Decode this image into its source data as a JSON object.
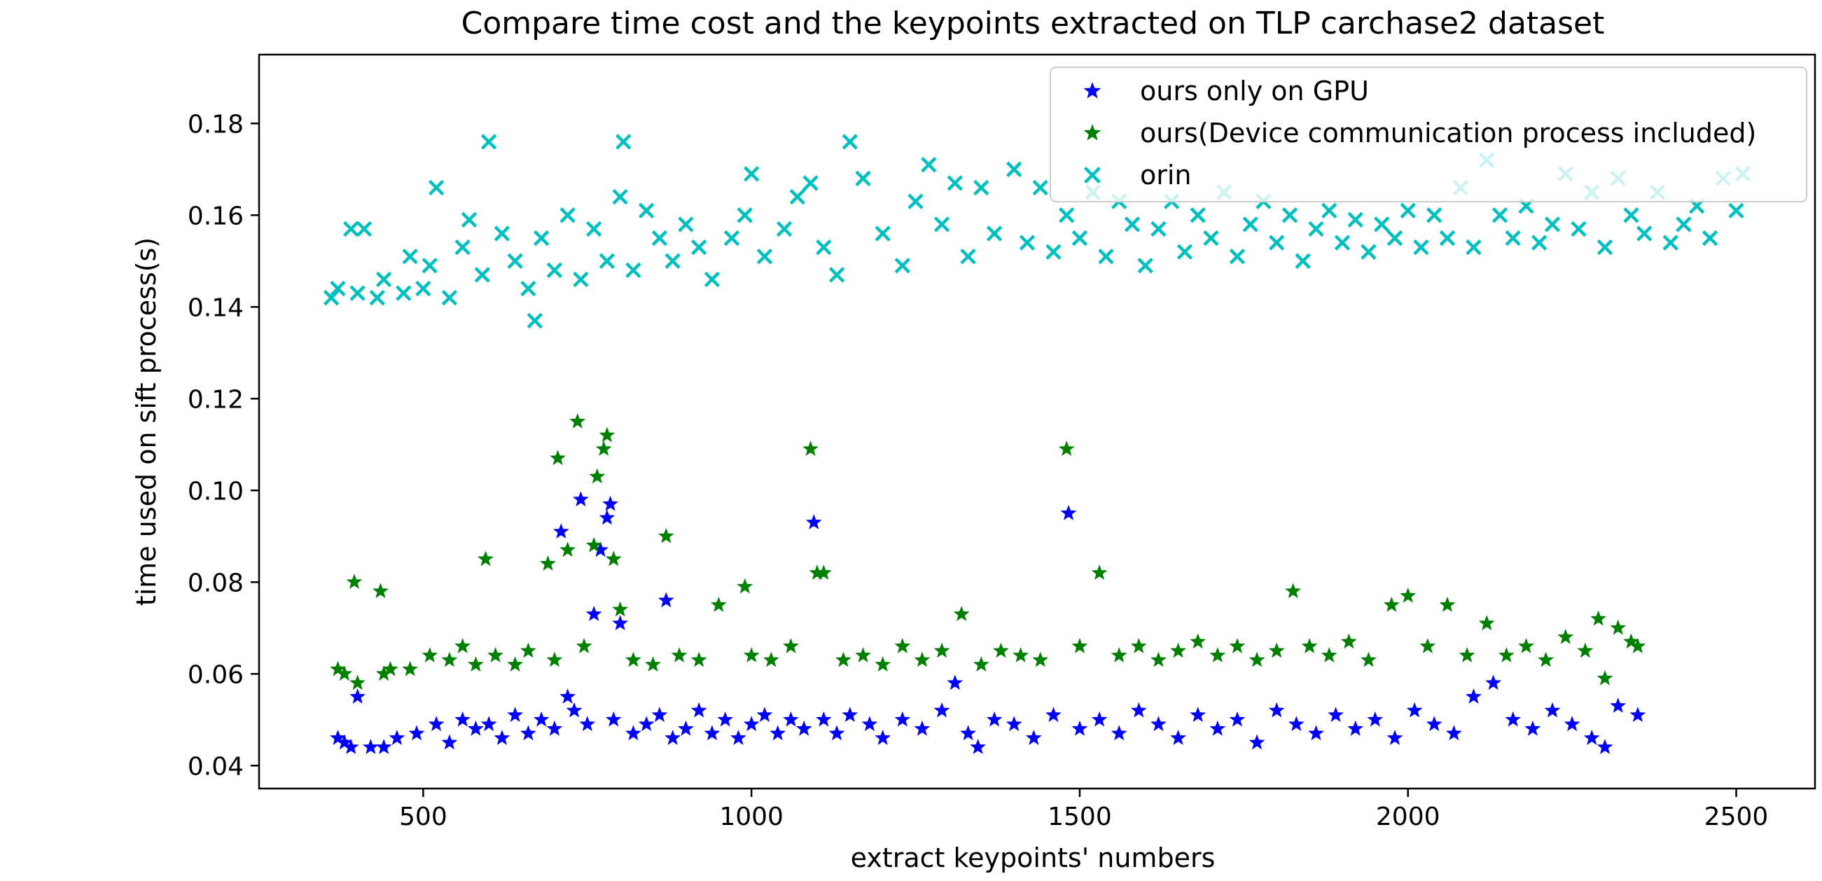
{
  "chart_data": {
    "type": "scatter",
    "title": "Compare time cost and the keypoints extracted on TLP carchase2 dataset",
    "xlabel": "extract keypoints' numbers",
    "ylabel": "time used on sift process(s)",
    "xlim": [
      250,
      2620
    ],
    "ylim": [
      0.035,
      0.195
    ],
    "xticks": [
      500,
      1000,
      1500,
      2000,
      2500
    ],
    "xtick_labels": [
      "500",
      "1000",
      "1500",
      "2000",
      "2500"
    ],
    "yticks": [
      0.04,
      0.06,
      0.08,
      0.1,
      0.12,
      0.14,
      0.16,
      0.18
    ],
    "ytick_labels": [
      "0.04",
      "0.06",
      "0.08",
      "0.10",
      "0.12",
      "0.14",
      "0.16",
      "0.18"
    ],
    "grid": false,
    "legend_position": "top-right",
    "series": [
      {
        "name": "ours only on GPU",
        "marker": "star",
        "color": "#0000ff",
        "points": [
          [
            370,
            0.046
          ],
          [
            380,
            0.045
          ],
          [
            390,
            0.044
          ],
          [
            400,
            0.055
          ],
          [
            420,
            0.044
          ],
          [
            440,
            0.044
          ],
          [
            460,
            0.046
          ],
          [
            490,
            0.047
          ],
          [
            520,
            0.049
          ],
          [
            540,
            0.045
          ],
          [
            560,
            0.05
          ],
          [
            580,
            0.048
          ],
          [
            600,
            0.049
          ],
          [
            620,
            0.046
          ],
          [
            640,
            0.051
          ],
          [
            660,
            0.047
          ],
          [
            680,
            0.05
          ],
          [
            700,
            0.048
          ],
          [
            710,
            0.091
          ],
          [
            720,
            0.055
          ],
          [
            730,
            0.052
          ],
          [
            740,
            0.098
          ],
          [
            750,
            0.049
          ],
          [
            760,
            0.073
          ],
          [
            770,
            0.087
          ],
          [
            780,
            0.094
          ],
          [
            785,
            0.097
          ],
          [
            790,
            0.05
          ],
          [
            800,
            0.071
          ],
          [
            820,
            0.047
          ],
          [
            840,
            0.049
          ],
          [
            860,
            0.051
          ],
          [
            870,
            0.076
          ],
          [
            880,
            0.046
          ],
          [
            900,
            0.048
          ],
          [
            920,
            0.052
          ],
          [
            940,
            0.047
          ],
          [
            960,
            0.05
          ],
          [
            980,
            0.046
          ],
          [
            1000,
            0.049
          ],
          [
            1020,
            0.051
          ],
          [
            1040,
            0.047
          ],
          [
            1060,
            0.05
          ],
          [
            1080,
            0.048
          ],
          [
            1095,
            0.093
          ],
          [
            1110,
            0.05
          ],
          [
            1130,
            0.047
          ],
          [
            1150,
            0.051
          ],
          [
            1180,
            0.049
          ],
          [
            1200,
            0.046
          ],
          [
            1230,
            0.05
          ],
          [
            1260,
            0.048
          ],
          [
            1290,
            0.052
          ],
          [
            1310,
            0.058
          ],
          [
            1330,
            0.047
          ],
          [
            1345,
            0.044
          ],
          [
            1370,
            0.05
          ],
          [
            1400,
            0.049
          ],
          [
            1430,
            0.046
          ],
          [
            1460,
            0.051
          ],
          [
            1483,
            0.095
          ],
          [
            1500,
            0.048
          ],
          [
            1530,
            0.05
          ],
          [
            1560,
            0.047
          ],
          [
            1590,
            0.052
          ],
          [
            1620,
            0.049
          ],
          [
            1650,
            0.046
          ],
          [
            1680,
            0.051
          ],
          [
            1710,
            0.048
          ],
          [
            1740,
            0.05
          ],
          [
            1770,
            0.045
          ],
          [
            1800,
            0.052
          ],
          [
            1830,
            0.049
          ],
          [
            1860,
            0.047
          ],
          [
            1890,
            0.051
          ],
          [
            1920,
            0.048
          ],
          [
            1950,
            0.05
          ],
          [
            1980,
            0.046
          ],
          [
            2010,
            0.052
          ],
          [
            2040,
            0.049
          ],
          [
            2070,
            0.047
          ],
          [
            2100,
            0.055
          ],
          [
            2130,
            0.058
          ],
          [
            2160,
            0.05
          ],
          [
            2190,
            0.048
          ],
          [
            2220,
            0.052
          ],
          [
            2250,
            0.049
          ],
          [
            2280,
            0.046
          ],
          [
            2300,
            0.044
          ],
          [
            2320,
            0.053
          ],
          [
            2350,
            0.051
          ]
        ]
      },
      {
        "name": "ours(Device communication process included)",
        "marker": "star",
        "color": "#008000",
        "points": [
          [
            370,
            0.061
          ],
          [
            380,
            0.06
          ],
          [
            395,
            0.08
          ],
          [
            400,
            0.058
          ],
          [
            435,
            0.078
          ],
          [
            440,
            0.06
          ],
          [
            450,
            0.061
          ],
          [
            480,
            0.061
          ],
          [
            510,
            0.064
          ],
          [
            540,
            0.063
          ],
          [
            560,
            0.066
          ],
          [
            580,
            0.062
          ],
          [
            595,
            0.085
          ],
          [
            610,
            0.064
          ],
          [
            640,
            0.062
          ],
          [
            660,
            0.065
          ],
          [
            690,
            0.084
          ],
          [
            700,
            0.063
          ],
          [
            705,
            0.107
          ],
          [
            720,
            0.087
          ],
          [
            735,
            0.115
          ],
          [
            745,
            0.066
          ],
          [
            760,
            0.088
          ],
          [
            765,
            0.103
          ],
          [
            775,
            0.109
          ],
          [
            780,
            0.112
          ],
          [
            790,
            0.085
          ],
          [
            800,
            0.074
          ],
          [
            820,
            0.063
          ],
          [
            850,
            0.062
          ],
          [
            870,
            0.09
          ],
          [
            890,
            0.064
          ],
          [
            920,
            0.063
          ],
          [
            950,
            0.075
          ],
          [
            990,
            0.079
          ],
          [
            1000,
            0.064
          ],
          [
            1030,
            0.063
          ],
          [
            1060,
            0.066
          ],
          [
            1090,
            0.109
          ],
          [
            1100,
            0.082
          ],
          [
            1110,
            0.082
          ],
          [
            1140,
            0.063
          ],
          [
            1170,
            0.064
          ],
          [
            1200,
            0.062
          ],
          [
            1230,
            0.066
          ],
          [
            1260,
            0.063
          ],
          [
            1290,
            0.065
          ],
          [
            1320,
            0.073
          ],
          [
            1350,
            0.062
          ],
          [
            1380,
            0.065
          ],
          [
            1410,
            0.064
          ],
          [
            1440,
            0.063
          ],
          [
            1480,
            0.109
          ],
          [
            1500,
            0.066
          ],
          [
            1530,
            0.082
          ],
          [
            1560,
            0.064
          ],
          [
            1590,
            0.066
          ],
          [
            1620,
            0.063
          ],
          [
            1650,
            0.065
          ],
          [
            1680,
            0.067
          ],
          [
            1710,
            0.064
          ],
          [
            1740,
            0.066
          ],
          [
            1770,
            0.063
          ],
          [
            1800,
            0.065
          ],
          [
            1825,
            0.078
          ],
          [
            1850,
            0.066
          ],
          [
            1880,
            0.064
          ],
          [
            1910,
            0.067
          ],
          [
            1940,
            0.063
          ],
          [
            1975,
            0.075
          ],
          [
            2000,
            0.077
          ],
          [
            2030,
            0.066
          ],
          [
            2060,
            0.075
          ],
          [
            2090,
            0.064
          ],
          [
            2120,
            0.071
          ],
          [
            2150,
            0.064
          ],
          [
            2180,
            0.066
          ],
          [
            2210,
            0.063
          ],
          [
            2240,
            0.068
          ],
          [
            2270,
            0.065
          ],
          [
            2290,
            0.072
          ],
          [
            2300,
            0.059
          ],
          [
            2320,
            0.07
          ],
          [
            2340,
            0.067
          ],
          [
            2350,
            0.066
          ]
        ]
      },
      {
        "name": "orin",
        "marker": "x",
        "color": "#00bfbf",
        "points": [
          [
            360,
            0.142
          ],
          [
            370,
            0.144
          ],
          [
            390,
            0.157
          ],
          [
            400,
            0.143
          ],
          [
            410,
            0.157
          ],
          [
            430,
            0.142
          ],
          [
            440,
            0.146
          ],
          [
            470,
            0.143
          ],
          [
            480,
            0.151
          ],
          [
            500,
            0.144
          ],
          [
            510,
            0.149
          ],
          [
            520,
            0.166
          ],
          [
            540,
            0.142
          ],
          [
            560,
            0.153
          ],
          [
            570,
            0.159
          ],
          [
            590,
            0.147
          ],
          [
            600,
            0.176
          ],
          [
            620,
            0.156
          ],
          [
            640,
            0.15
          ],
          [
            660,
            0.144
          ],
          [
            670,
            0.137
          ],
          [
            680,
            0.155
          ],
          [
            700,
            0.148
          ],
          [
            720,
            0.16
          ],
          [
            740,
            0.146
          ],
          [
            760,
            0.157
          ],
          [
            780,
            0.15
          ],
          [
            800,
            0.164
          ],
          [
            805,
            0.176
          ],
          [
            820,
            0.148
          ],
          [
            840,
            0.161
          ],
          [
            860,
            0.155
          ],
          [
            880,
            0.15
          ],
          [
            900,
            0.158
          ],
          [
            920,
            0.153
          ],
          [
            940,
            0.146
          ],
          [
            970,
            0.155
          ],
          [
            990,
            0.16
          ],
          [
            1000,
            0.169
          ],
          [
            1020,
            0.151
          ],
          [
            1050,
            0.157
          ],
          [
            1070,
            0.164
          ],
          [
            1090,
            0.167
          ],
          [
            1110,
            0.153
          ],
          [
            1130,
            0.147
          ],
          [
            1150,
            0.176
          ],
          [
            1170,
            0.168
          ],
          [
            1200,
            0.156
          ],
          [
            1230,
            0.149
          ],
          [
            1250,
            0.163
          ],
          [
            1270,
            0.171
          ],
          [
            1290,
            0.158
          ],
          [
            1310,
            0.167
          ],
          [
            1330,
            0.151
          ],
          [
            1350,
            0.166
          ],
          [
            1370,
            0.156
          ],
          [
            1400,
            0.17
          ],
          [
            1420,
            0.154
          ],
          [
            1440,
            0.166
          ],
          [
            1460,
            0.152
          ],
          [
            1480,
            0.16
          ],
          [
            1500,
            0.155
          ],
          [
            1520,
            0.165
          ],
          [
            1540,
            0.151
          ],
          [
            1560,
            0.163
          ],
          [
            1580,
            0.158
          ],
          [
            1600,
            0.149
          ],
          [
            1620,
            0.157
          ],
          [
            1640,
            0.163
          ],
          [
            1660,
            0.152
          ],
          [
            1680,
            0.16
          ],
          [
            1700,
            0.155
          ],
          [
            1720,
            0.165
          ],
          [
            1740,
            0.151
          ],
          [
            1760,
            0.158
          ],
          [
            1780,
            0.163
          ],
          [
            1800,
            0.154
          ],
          [
            1820,
            0.16
          ],
          [
            1840,
            0.15
          ],
          [
            1860,
            0.157
          ],
          [
            1880,
            0.161
          ],
          [
            1900,
            0.154
          ],
          [
            1920,
            0.159
          ],
          [
            1940,
            0.152
          ],
          [
            1960,
            0.158
          ],
          [
            1980,
            0.155
          ],
          [
            2000,
            0.161
          ],
          [
            2020,
            0.153
          ],
          [
            2040,
            0.16
          ],
          [
            2060,
            0.155
          ],
          [
            2080,
            0.166
          ],
          [
            2100,
            0.153
          ],
          [
            2120,
            0.172
          ],
          [
            2140,
            0.16
          ],
          [
            2160,
            0.155
          ],
          [
            2180,
            0.162
          ],
          [
            2200,
            0.154
          ],
          [
            2220,
            0.158
          ],
          [
            2240,
            0.169
          ],
          [
            2260,
            0.157
          ],
          [
            2280,
            0.165
          ],
          [
            2300,
            0.153
          ],
          [
            2320,
            0.168
          ],
          [
            2340,
            0.16
          ],
          [
            2360,
            0.156
          ],
          [
            2380,
            0.165
          ],
          [
            2400,
            0.154
          ],
          [
            2420,
            0.158
          ],
          [
            2440,
            0.162
          ],
          [
            2460,
            0.155
          ],
          [
            2480,
            0.168
          ],
          [
            2500,
            0.161
          ],
          [
            2510,
            0.169
          ]
        ]
      }
    ]
  }
}
